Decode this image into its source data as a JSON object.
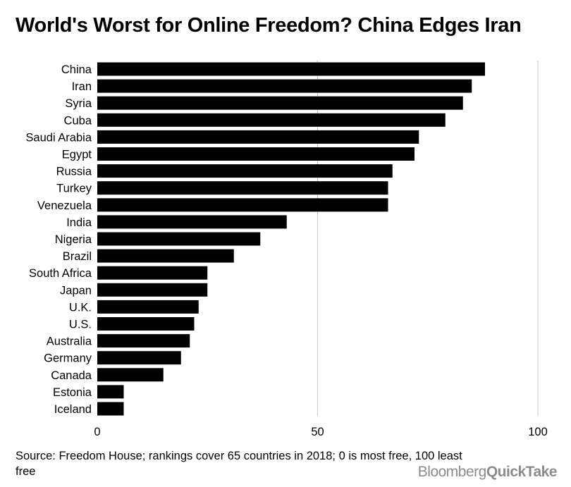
{
  "title": "World's Worst for Online Freedom? China Edges Iran",
  "source": "Source: Freedom House; rankings cover 65 countries in 2018; 0 is most free, 100 least free",
  "logo": {
    "brand": "Bloomberg",
    "product": "QuickTake"
  },
  "colors": {
    "bar": "#000000",
    "grid": "#cccccc",
    "logo": "#8c8c8c"
  },
  "chart_data": {
    "type": "bar",
    "orientation": "horizontal",
    "title": "World's Worst for Online Freedom? China Edges Iran",
    "xlabel": "",
    "ylabel": "",
    "xlim": [
      0,
      100
    ],
    "xticks": [
      0,
      50,
      100
    ],
    "grid": true,
    "categories": [
      "China",
      "Iran",
      "Syria",
      "Cuba",
      "Saudi Arabia",
      "Egypt",
      "Russia",
      "Turkey",
      "Venezuela",
      "India",
      "Nigeria",
      "Brazil",
      "South Africa",
      "Japan",
      "U.K.",
      "U.S.",
      "Australia",
      "Germany",
      "Canada",
      "Estonia",
      "Iceland"
    ],
    "values": [
      88,
      85,
      83,
      79,
      73,
      72,
      67,
      66,
      66,
      43,
      37,
      31,
      25,
      25,
      23,
      22,
      21,
      19,
      15,
      6,
      6
    ]
  }
}
